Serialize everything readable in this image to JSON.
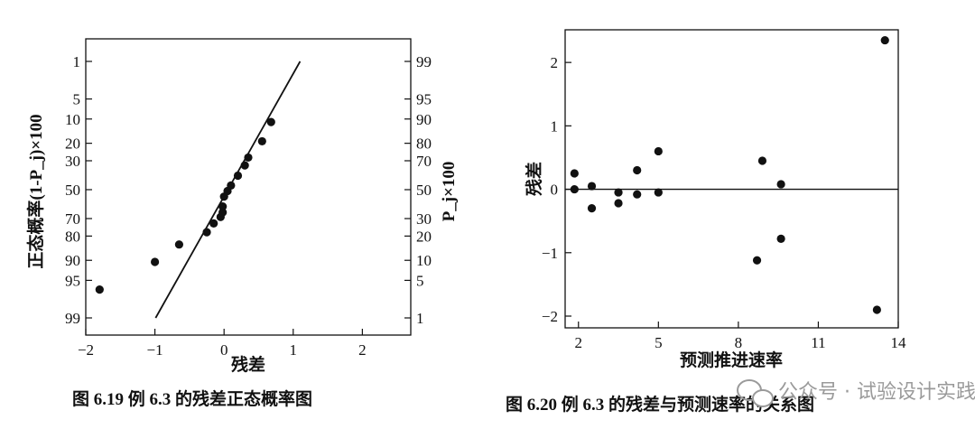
{
  "chart_data": [
    {
      "type": "scatter",
      "caption": "图 6.19 例 6.3 的残差正态概率图",
      "xlabel": "残差",
      "ylabel_left": "正态概率(1-P_j)×100",
      "ylabel_right": "P_j×100",
      "xlim": [
        -2,
        2.7
      ],
      "x_ticks": [
        -2,
        -1,
        0,
        1,
        2
      ],
      "left_ticks": [
        "1",
        "5",
        "10",
        "20",
        "30",
        "50",
        "70",
        "80",
        "90",
        "95",
        "99"
      ],
      "right_ticks": [
        "99",
        "95",
        "90",
        "80",
        "70",
        "50",
        "30",
        "20",
        "10",
        "5",
        "1"
      ],
      "fit_line": [
        {
          "x": -0.99,
          "p": 1
        },
        {
          "x": 1.1,
          "p": 99
        }
      ],
      "points": [
        {
          "x": -1.8,
          "p": 3.5
        },
        {
          "x": -1.0,
          "p": 9.5
        },
        {
          "x": -0.65,
          "p": 16
        },
        {
          "x": -0.25,
          "p": 22
        },
        {
          "x": -0.15,
          "p": 27
        },
        {
          "x": -0.05,
          "p": 31
        },
        {
          "x": -0.02,
          "p": 34
        },
        {
          "x": -0.02,
          "p": 38
        },
        {
          "x": 0.0,
          "p": 45
        },
        {
          "x": 0.05,
          "p": 49
        },
        {
          "x": 0.1,
          "p": 53
        },
        {
          "x": 0.2,
          "p": 60
        },
        {
          "x": 0.3,
          "p": 67
        },
        {
          "x": 0.35,
          "p": 72
        },
        {
          "x": 0.55,
          "p": 81
        },
        {
          "x": 0.68,
          "p": 89
        }
      ]
    },
    {
      "type": "scatter",
      "caption": "图 6.20 例 6.3 的残差与预测速率的关系图",
      "xlabel": "预测推进速率",
      "ylabel": "残差",
      "xlim": [
        1.5,
        14
      ],
      "ylim": [
        -2,
        2.7
      ],
      "x_ticks": [
        2,
        5,
        8,
        11,
        14
      ],
      "y_ticks": [
        -2,
        -1,
        0,
        1,
        2
      ],
      "points": [
        {
          "x": 1.85,
          "y": 0.25
        },
        {
          "x": 1.85,
          "y": 0.0
        },
        {
          "x": 2.5,
          "y": 0.05
        },
        {
          "x": 2.5,
          "y": -0.3
        },
        {
          "x": 3.5,
          "y": -0.05
        },
        {
          "x": 3.5,
          "y": -0.22
        },
        {
          "x": 4.2,
          "y": 0.3
        },
        {
          "x": 4.2,
          "y": -0.08
        },
        {
          "x": 5.0,
          "y": 0.6
        },
        {
          "x": 5.0,
          "y": -0.05
        },
        {
          "x": 8.9,
          "y": 0.45
        },
        {
          "x": 8.7,
          "y": -1.12
        },
        {
          "x": 9.6,
          "y": 0.08
        },
        {
          "x": 9.6,
          "y": -0.78
        },
        {
          "x": 13.2,
          "y": -1.9
        },
        {
          "x": 13.5,
          "y": 2.35
        }
      ]
    }
  ],
  "watermark": "公众号 · 试验设计实践派"
}
